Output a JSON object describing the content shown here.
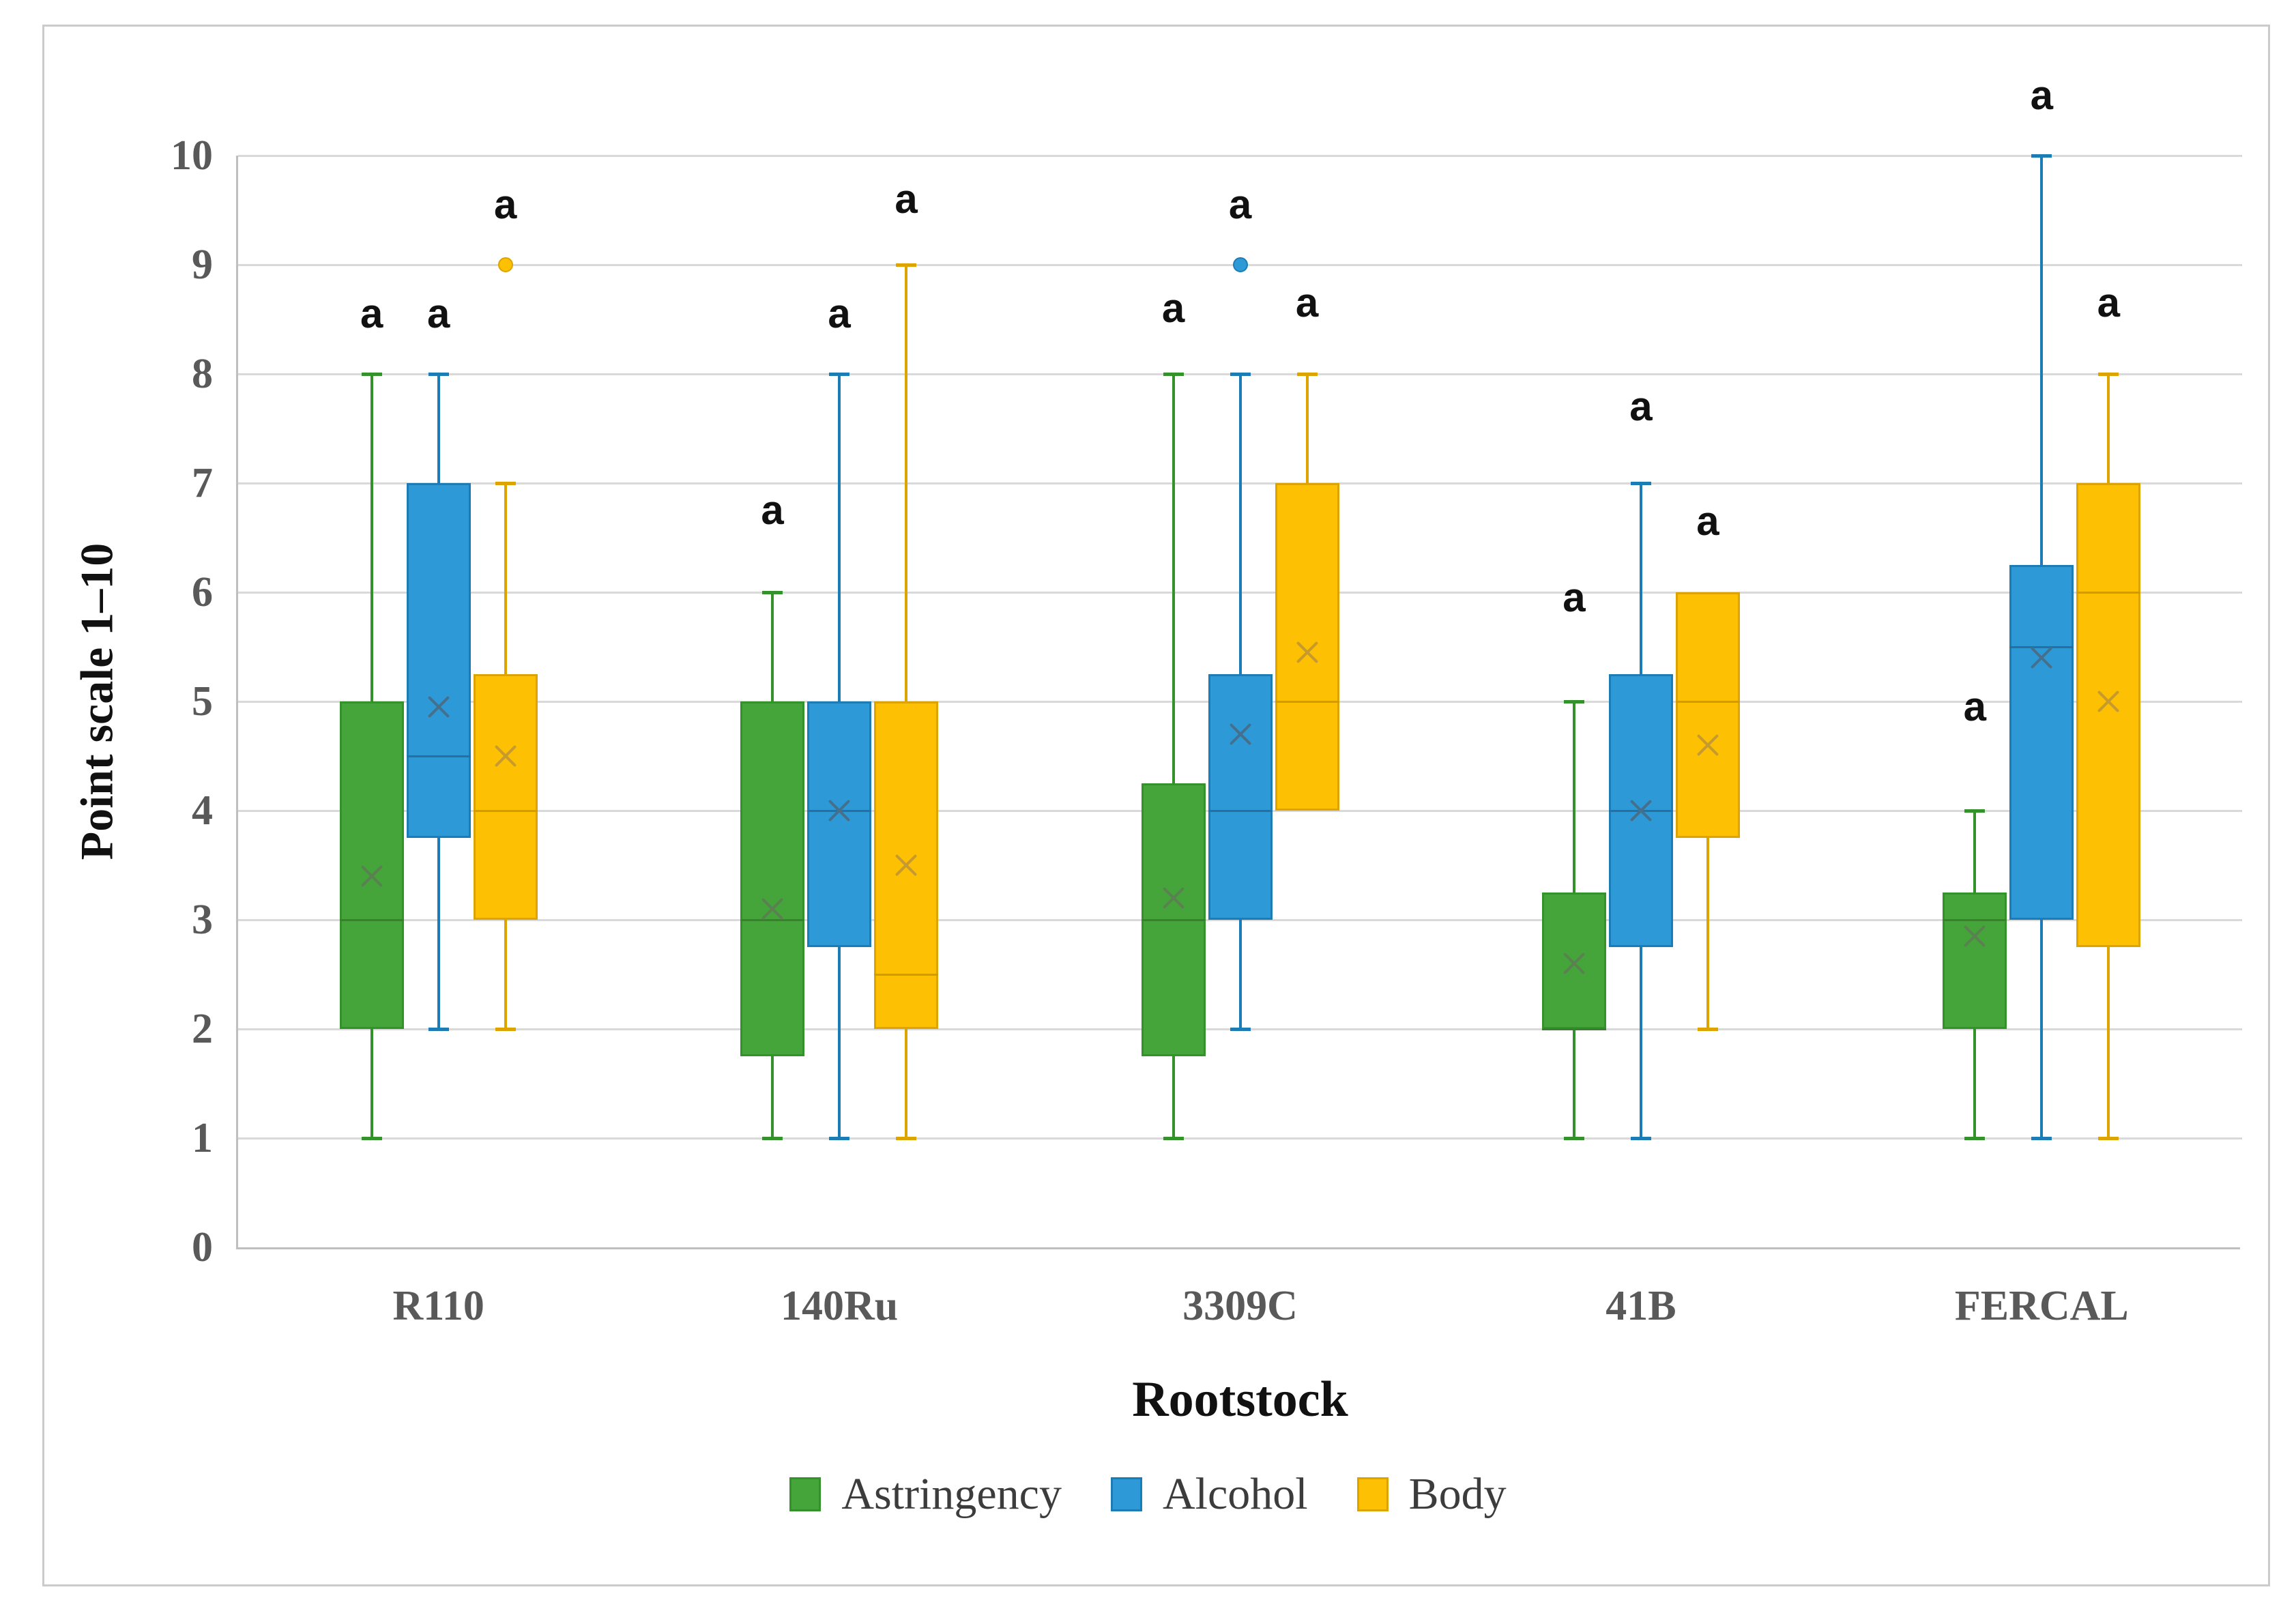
{
  "figure": {
    "background": "#ffffff",
    "border_color": "#cbcbcb"
  },
  "axes": {
    "grid_color": "#d9d9d9",
    "axis_line_color": "#bfbfbf",
    "tick_label_color": "#595959",
    "title_color": "#111111"
  },
  "legend_text_color": "#3c3c3c",
  "sig_label_color": "#111111",
  "chart_data": {
    "type": "box",
    "title": "",
    "xlabel": "Rootstock",
    "ylabel": "Point scale 1–10",
    "ylim": [
      0,
      10
    ],
    "yticks": [
      0,
      1,
      2,
      3,
      4,
      5,
      6,
      7,
      8,
      9,
      10
    ],
    "ytick_labels": [
      "0",
      "1",
      "2",
      "3",
      "4",
      "5",
      "6",
      "7",
      "8",
      "9",
      "10"
    ],
    "grid": true,
    "legend_position": "bottom",
    "significance_letter": "a",
    "categories": [
      "R110",
      "140Ru",
      "3309C",
      "41B",
      "FERCAL"
    ],
    "series": [
      {
        "name": "Astringency",
        "fill": "#45a53b",
        "stroke": "#33922a",
        "median_color": "#3d7d33",
        "mean_color": "#5a8150",
        "boxes": [
          {
            "category": "R110",
            "min": 1,
            "q1": 2.0,
            "median": 3.0,
            "q3": 5.0,
            "max": 8,
            "mean": 3.4,
            "outliers": [],
            "sig_label": "a",
            "sig_label_y": 8.55
          },
          {
            "category": "140Ru",
            "min": 1,
            "q1": 1.75,
            "median": 3.0,
            "q3": 5.0,
            "max": 6,
            "mean": 3.1,
            "outliers": [],
            "sig_label": "a",
            "sig_label_y": 6.75
          },
          {
            "category": "3309C",
            "min": 1,
            "q1": 1.75,
            "median": 3.0,
            "q3": 4.25,
            "max": 8,
            "mean": 3.2,
            "outliers": [],
            "sig_label": "a",
            "sig_label_y": 8.6
          },
          {
            "category": "41B",
            "min": 1,
            "q1": 2.0,
            "median": 2.0,
            "q3": 3.25,
            "max": 5,
            "mean": 2.6,
            "outliers": [],
            "sig_label": "a",
            "sig_label_y": 5.95
          },
          {
            "category": "FERCAL",
            "min": 1,
            "q1": 2.0,
            "median": 3.0,
            "q3": 3.25,
            "max": 4,
            "mean": 2.85,
            "outliers": [],
            "sig_label": "a",
            "sig_label_y": 4.95
          }
        ]
      },
      {
        "name": "Alcohol",
        "fill": "#2d9ad7",
        "stroke": "#1c7cb5",
        "median_color": "#2a6f9c",
        "mean_color": "#44708d",
        "boxes": [
          {
            "category": "R110",
            "min": 2,
            "q1": 3.75,
            "median": 4.5,
            "q3": 7.0,
            "max": 8,
            "mean": 4.95,
            "outliers": [],
            "sig_label": "a",
            "sig_label_y": 8.55
          },
          {
            "category": "140Ru",
            "min": 1,
            "q1": 2.75,
            "median": 4.0,
            "q3": 5.0,
            "max": 8,
            "mean": 4.0,
            "outliers": [],
            "sig_label": "a",
            "sig_label_y": 8.55
          },
          {
            "category": "3309C",
            "min": 2,
            "q1": 3.0,
            "median": 4.0,
            "q3": 5.25,
            "max": 8,
            "mean": 4.7,
            "outliers": [
              9
            ],
            "sig_label": "a",
            "sig_label_y": 9.55
          },
          {
            "category": "41B",
            "min": 1,
            "q1": 2.75,
            "median": 4.0,
            "q3": 5.25,
            "max": 7,
            "mean": 4.0,
            "outliers": [],
            "sig_label": "a",
            "sig_label_y": 7.7
          },
          {
            "category": "FERCAL",
            "min": 1,
            "q1": 3.0,
            "median": 5.5,
            "q3": 6.25,
            "max": 10,
            "mean": 5.4,
            "outliers": [],
            "sig_label": "a",
            "sig_label_y": 10.55
          }
        ]
      },
      {
        "name": "Body",
        "fill": "#fdc002",
        "stroke": "#dda400",
        "median_color": "#cf9b00",
        "mean_color": "#c79a2e",
        "boxes": [
          {
            "category": "R110",
            "min": 2,
            "q1": 3.0,
            "median": 4.0,
            "q3": 5.25,
            "max": 7,
            "mean": 4.5,
            "outliers": [
              9
            ],
            "sig_label": "a",
            "sig_label_y": 9.55
          },
          {
            "category": "140Ru",
            "min": 1,
            "q1": 2.0,
            "median": 2.5,
            "q3": 5.0,
            "max": 9,
            "mean": 3.5,
            "outliers": [],
            "sig_label": "a",
            "sig_label_y": 9.6
          },
          {
            "category": "3309C",
            "min": 4,
            "q1": 4.0,
            "median": 5.0,
            "q3": 7.0,
            "max": 8,
            "mean": 5.45,
            "outliers": [],
            "sig_label": "a",
            "sig_label_y": 8.65
          },
          {
            "category": "41B",
            "min": 2,
            "q1": 3.75,
            "median": 5.0,
            "q3": 6.0,
            "max": 6,
            "mean": 4.6,
            "outliers": [],
            "sig_label": "a",
            "sig_label_y": 6.65
          },
          {
            "category": "FERCAL",
            "min": 1,
            "q1": 2.75,
            "median": 6.0,
            "q3": 7.0,
            "max": 8,
            "mean": 5.0,
            "outliers": [],
            "sig_label": "a",
            "sig_label_y": 8.65
          }
        ]
      }
    ]
  }
}
